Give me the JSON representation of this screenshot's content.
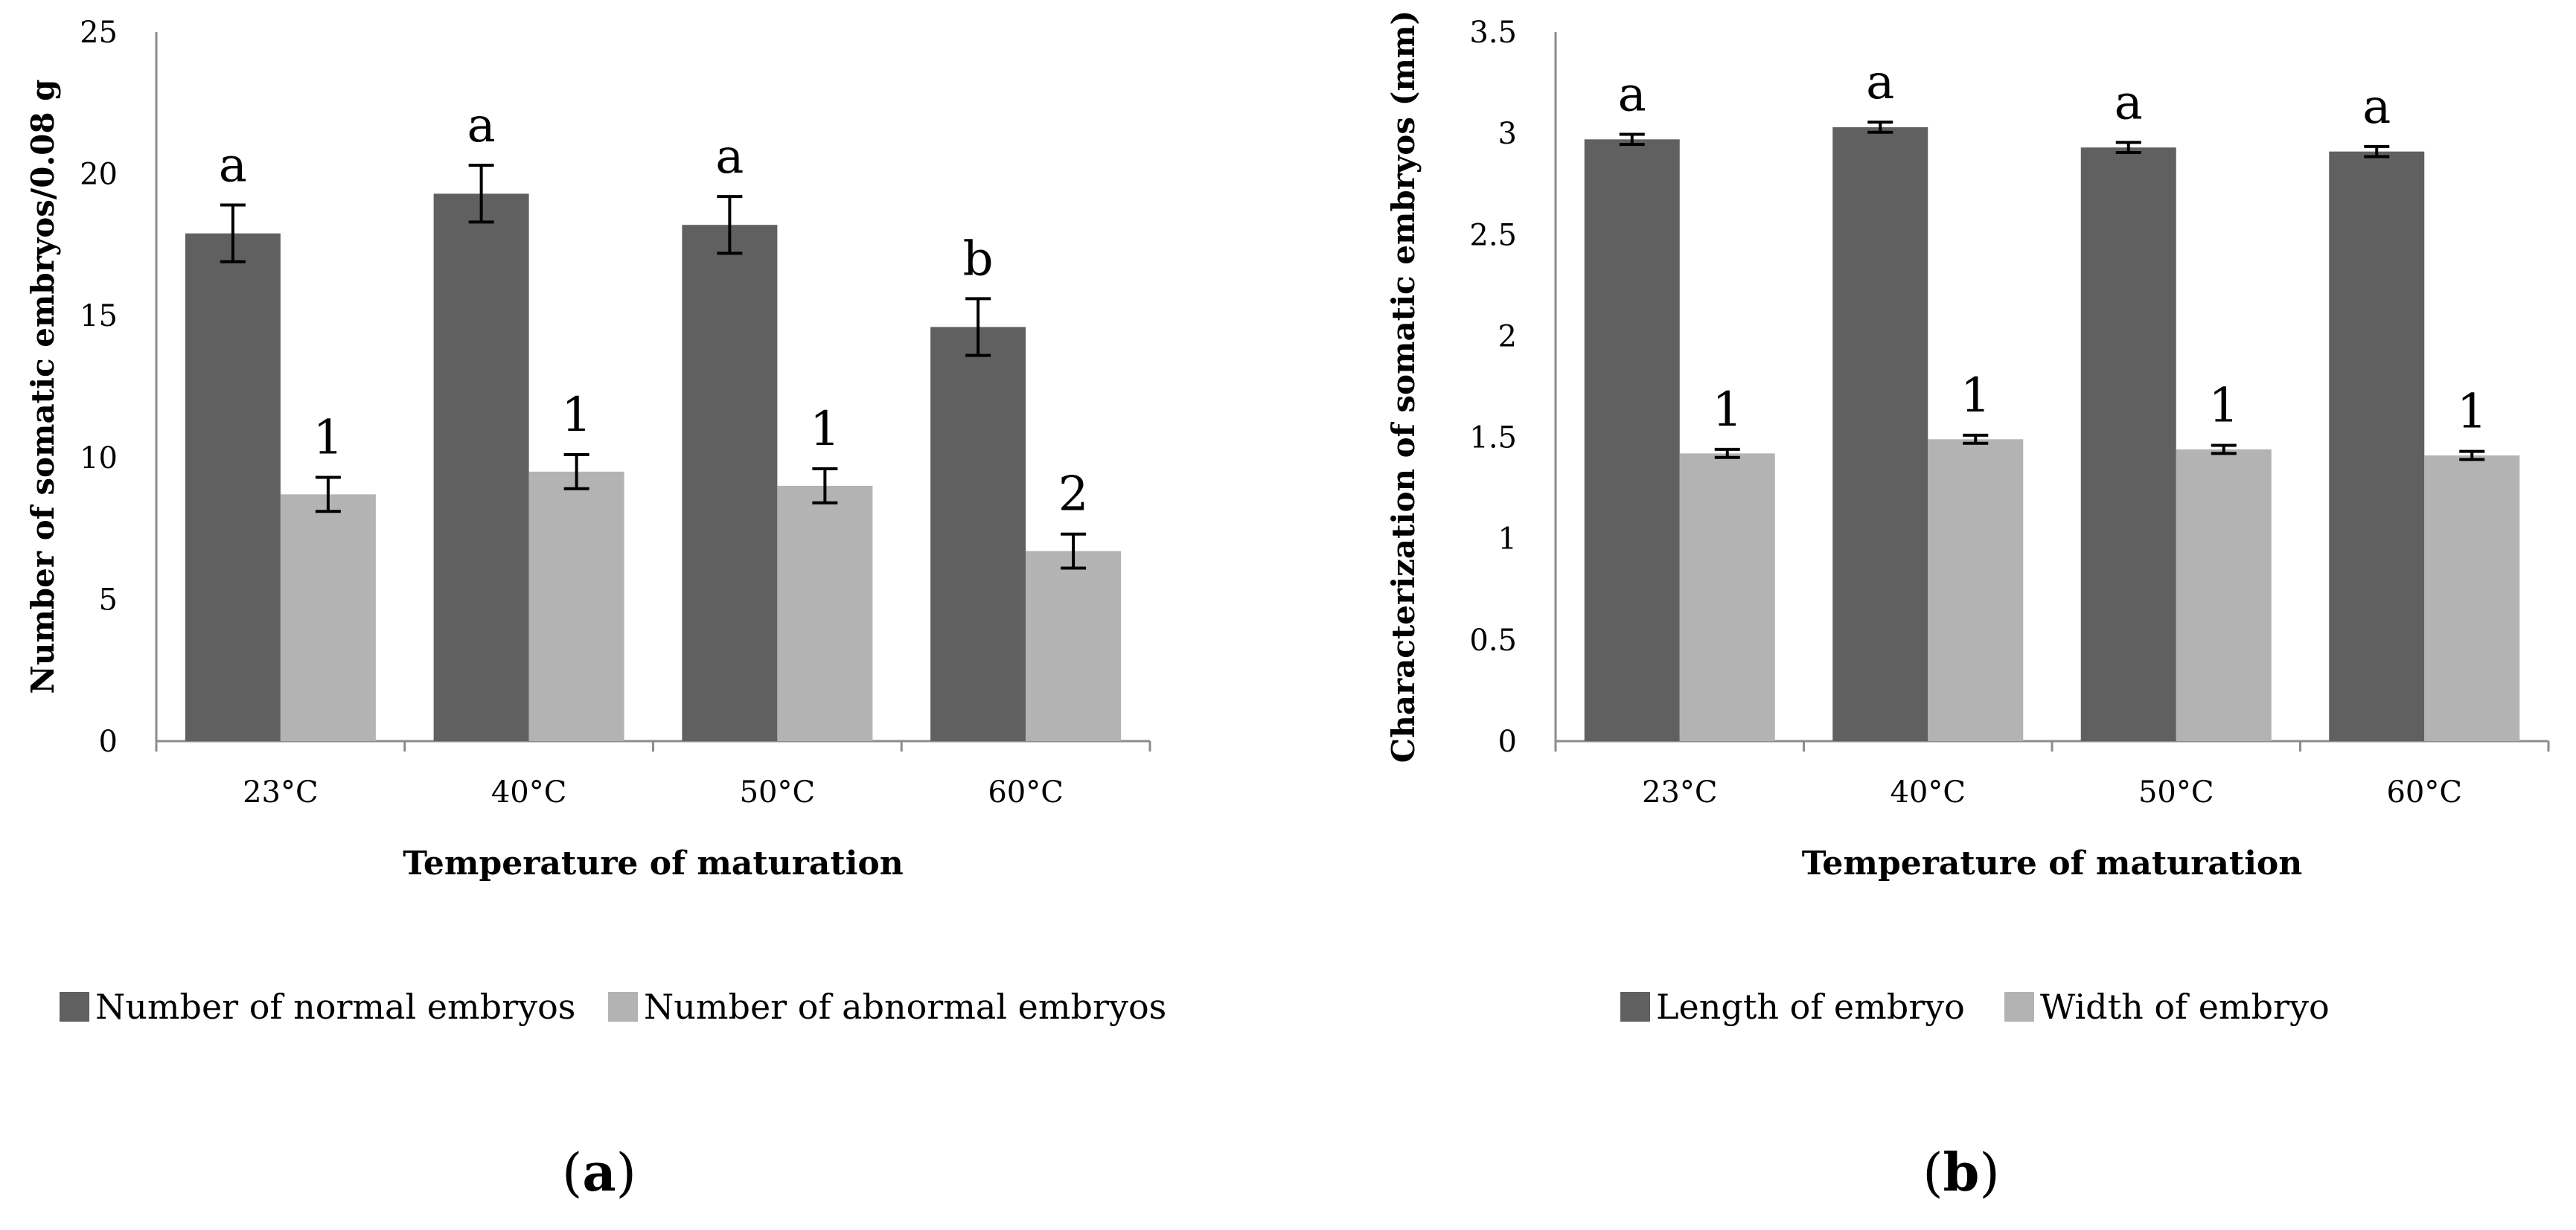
{
  "chart_data": [
    {
      "type": "bar",
      "panel_label": "a",
      "categories": [
        "23°C",
        "40°C",
        "50°C",
        "60°C"
      ],
      "xlabel": "Temperature of maturation",
      "ylabel": "Number of somatic embryos/0.08 g",
      "ylim": [
        0,
        25
      ],
      "yticks": [
        "0",
        "5",
        "10",
        "15",
        "20",
        "25"
      ],
      "grid": false,
      "legend_position": "bottom",
      "series": [
        {
          "name": "Number of normal embryos",
          "color": "#606060",
          "values": [
            17.9,
            19.3,
            18.2,
            14.6
          ],
          "errors": [
            1.0,
            1.0,
            1.0,
            1.0
          ],
          "labels": [
            "a",
            "a",
            "a",
            "b"
          ]
        },
        {
          "name": "Number of abnormal embryos",
          "color": "#b3b3b3",
          "values": [
            8.7,
            9.5,
            9.0,
            6.7
          ],
          "errors": [
            0.6,
            0.6,
            0.6,
            0.6
          ],
          "labels": [
            "1",
            "1",
            "1",
            "2"
          ]
        }
      ]
    },
    {
      "type": "bar",
      "panel_label": "b",
      "categories": [
        "23°C",
        "40°C",
        "50°C",
        "60°C"
      ],
      "xlabel": "Temperature of maturation",
      "ylabel": "Characterization of somatic embryos (mm)",
      "ylim": [
        0,
        3.5
      ],
      "yticks": [
        "0",
        "0.5",
        "1",
        "1.5",
        "2",
        "2.5",
        "3",
        "3.5"
      ],
      "grid": false,
      "legend_position": "bottom",
      "series": [
        {
          "name": "Length of embryo",
          "color": "#606060",
          "values": [
            2.97,
            3.03,
            2.93,
            2.91
          ],
          "errors": [
            0.025,
            0.025,
            0.025,
            0.025
          ],
          "labels": [
            "a",
            "a",
            "a",
            "a"
          ]
        },
        {
          "name": "Width of embryo",
          "color": "#b3b3b3",
          "values": [
            1.42,
            1.49,
            1.44,
            1.41
          ],
          "errors": [
            0.02,
            0.02,
            0.02,
            0.02
          ],
          "labels": [
            "1",
            "1",
            "1",
            "1"
          ]
        }
      ]
    }
  ]
}
